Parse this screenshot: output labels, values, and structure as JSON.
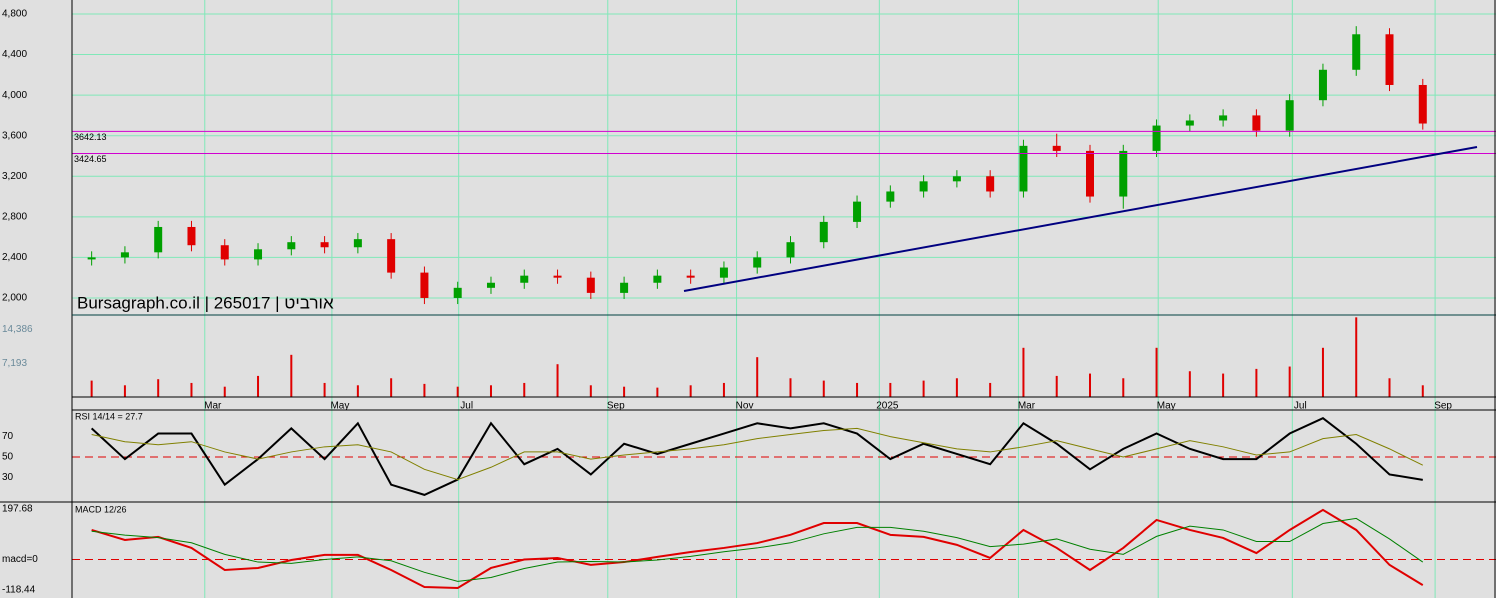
{
  "chart_data": [
    {
      "type": "candlestick",
      "title": "Bursagraph.co.il | 265017 | אורביט",
      "open": [
        2380,
        2400,
        2450,
        2700,
        2520,
        2380,
        2480,
        2550,
        2500,
        2580,
        2250,
        2000,
        2100,
        2150,
        2220,
        2200,
        2050,
        2150,
        2220,
        2200,
        2300,
        2400,
        2550,
        2750,
        2950,
        3050,
        3150,
        3200,
        3050,
        3500,
        3450,
        3000,
        3450,
        3700,
        3750,
        3800,
        3650,
        3950,
        4250,
        4600,
        4100
      ],
      "high": [
        2460,
        2510,
        2760,
        2760,
        2580,
        2540,
        2610,
        2610,
        2640,
        2640,
        2310,
        2160,
        2210,
        2280,
        2280,
        2260,
        2210,
        2280,
        2280,
        2360,
        2460,
        2610,
        2810,
        3010,
        3110,
        3210,
        3260,
        3260,
        3560,
        3620,
        3510,
        3510,
        3760,
        3810,
        3860,
        3860,
        4010,
        4310,
        4680,
        4660,
        4160
      ],
      "low": [
        2320,
        2340,
        2390,
        2460,
        2320,
        2320,
        2420,
        2440,
        2440,
        2190,
        1940,
        1940,
        2040,
        2090,
        2140,
        1990,
        1990,
        2090,
        2140,
        2140,
        2240,
        2340,
        2490,
        2690,
        2890,
        2990,
        3090,
        2990,
        2990,
        3390,
        2940,
        2880,
        3390,
        3640,
        3690,
        3590,
        3590,
        3890,
        4190,
        4040,
        3660
      ],
      "close": [
        2400,
        2450,
        2700,
        2520,
        2380,
        2480,
        2550,
        2500,
        2580,
        2250,
        2000,
        2100,
        2150,
        2220,
        2200,
        2050,
        2150,
        2220,
        2200,
        2300,
        2400,
        2550,
        2750,
        2950,
        3050,
        3150,
        3200,
        3050,
        3500,
        3450,
        3000,
        3450,
        3700,
        3750,
        3800,
        3650,
        3950,
        4250,
        4600,
        4100,
        3720
      ],
      "up_color": "#00a000",
      "down_color": "#e00000",
      "ylim": [
        1832,
        4938
      ],
      "yticks": [
        {
          "value": 2000,
          "label": "2,000"
        },
        {
          "value": 2400,
          "label": "2,400"
        },
        {
          "value": 2800,
          "label": "2,800"
        },
        {
          "value": 3200,
          "label": "3,200"
        },
        {
          "value": 3600,
          "label": "3,600"
        },
        {
          "value": 4000,
          "label": "4,000"
        },
        {
          "value": 4400,
          "label": "4,400"
        },
        {
          "value": 4800,
          "label": "4,800"
        }
      ],
      "levels": [
        3642.13,
        3424.65
      ],
      "level_color": "#d000d0",
      "grid": true
    },
    {
      "type": "bar",
      "color": "#e00000",
      "values": [
        3500,
        2500,
        3800,
        3000,
        2200,
        4500,
        9000,
        3000,
        2500,
        4000,
        2800,
        2200,
        2500,
        3000,
        7000,
        2500,
        2200,
        2000,
        2500,
        3000,
        8500,
        4000,
        3500,
        3000,
        3000,
        3500,
        4000,
        3000,
        10500,
        4500,
        5000,
        4000,
        10500,
        5500,
        5000,
        6000,
        6500,
        10500,
        17000,
        4000,
        2500
      ],
      "ylim": [
        0,
        17500
      ],
      "yticks": [
        {
          "value": 7193,
          "label": "7,193"
        },
        {
          "value": 14386,
          "label": "14,386"
        }
      ],
      "xlim": [
        -0.5,
        42.2
      ],
      "xticks": [
        {
          "value": 3.64,
          "label": "Mar"
        },
        {
          "value": 7.46,
          "label": "May"
        },
        {
          "value": 11.27,
          "label": "Jul"
        },
        {
          "value": 15.75,
          "label": "Sep"
        },
        {
          "value": 19.62,
          "label": "Nov"
        },
        {
          "value": 23.91,
          "label": "2025"
        },
        {
          "value": 28.09,
          "label": "Mar"
        },
        {
          "value": 32.29,
          "label": "May"
        },
        {
          "value": 36.32,
          "label": "Jul"
        },
        {
          "value": 40.61,
          "label": "Sep"
        }
      ]
    },
    {
      "type": "line",
      "title": "RSI 14/14 = 27.7",
      "series": [
        {
          "color": "#000000",
          "values": [
            78,
            48,
            73,
            73,
            23,
            48,
            78,
            48,
            83,
            23,
            13,
            28,
            83,
            43,
            58,
            33,
            63,
            53,
            63,
            73,
            83,
            78,
            83,
            73,
            48,
            63,
            53,
            43,
            83,
            63,
            38,
            58,
            73,
            58,
            48,
            48,
            73,
            88,
            63,
            33,
            27.7
          ]
        },
        {
          "color": "#808000",
          "values": [
            72,
            65,
            62,
            65,
            55,
            48,
            55,
            60,
            62,
            55,
            38,
            28,
            40,
            55,
            55,
            48,
            52,
            55,
            58,
            62,
            68,
            72,
            76,
            78,
            70,
            64,
            58,
            55,
            60,
            66,
            58,
            50,
            58,
            66,
            60,
            52,
            55,
            68,
            72,
            58,
            42
          ]
        }
      ],
      "reference_line": 50,
      "ylim": [
        8,
        96
      ],
      "yticks": [
        30,
        50,
        70
      ]
    },
    {
      "type": "line",
      "title": "MACD 12/26",
      "series": [
        {
          "color": "#e00000",
          "values": [
            115,
            76,
            88,
            45,
            -41,
            -33,
            -2,
            18,
            18,
            -41,
            -107,
            -111,
            -33,
            0,
            6,
            -21,
            -10,
            10,
            29,
            45,
            64,
            96,
            142,
            142,
            96,
            88,
            57,
            6,
            115,
            45,
            -41,
            45,
            154,
            115,
            84,
            25,
            115,
            193,
            115,
            -21,
            -100
          ]
        },
        {
          "color": "#008000",
          "values": [
            110,
            95,
            85,
            65,
            20,
            -10,
            -15,
            0,
            10,
            -5,
            -50,
            -85,
            -70,
            -35,
            -10,
            -8,
            -10,
            -2,
            12,
            30,
            45,
            65,
            100,
            125,
            125,
            110,
            85,
            50,
            60,
            80,
            40,
            20,
            90,
            130,
            115,
            70,
            70,
            140,
            160,
            80,
            -10
          ]
        }
      ],
      "reference_line": 0,
      "ylim": [
        -150,
        220
      ],
      "yticks": [
        -118.44,
        {
          "value": 0,
          "label": "macd=0"
        },
        197.68
      ]
    }
  ]
}
